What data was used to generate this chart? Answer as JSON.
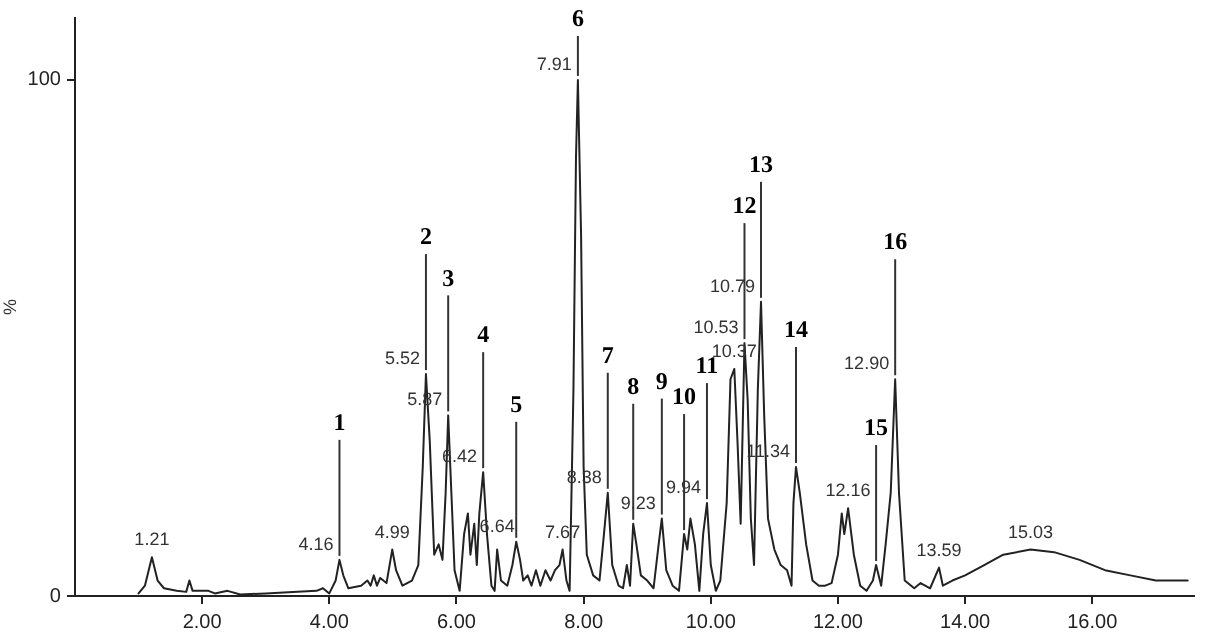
{
  "chart_data": {
    "type": "line",
    "ylabel": "%",
    "x": [
      1.0,
      1.1,
      1.21,
      1.3,
      1.4,
      1.6,
      1.75,
      1.8,
      1.85,
      2.1,
      2.2,
      2.4,
      2.6,
      3.0,
      3.5,
      3.8,
      3.9,
      4.0,
      4.1,
      4.16,
      4.22,
      4.3,
      4.5,
      4.6,
      4.65,
      4.7,
      4.75,
      4.8,
      4.9,
      4.99,
      5.05,
      5.15,
      5.3,
      5.4,
      5.47,
      5.52,
      5.58,
      5.65,
      5.72,
      5.78,
      5.83,
      5.87,
      5.92,
      5.97,
      6.05,
      6.12,
      6.18,
      6.22,
      6.28,
      6.32,
      6.36,
      6.42,
      6.48,
      6.55,
      6.6,
      6.64,
      6.7,
      6.8,
      6.88,
      6.94,
      7.0,
      7.05,
      7.12,
      7.18,
      7.25,
      7.32,
      7.4,
      7.48,
      7.55,
      7.62,
      7.67,
      7.73,
      7.78,
      7.84,
      7.88,
      7.91,
      7.96,
      8.0,
      8.05,
      8.15,
      8.25,
      8.32,
      8.38,
      8.45,
      8.55,
      8.62,
      8.68,
      8.73,
      8.78,
      8.83,
      8.9,
      9.0,
      9.1,
      9.18,
      9.23,
      9.3,
      9.4,
      9.5,
      9.58,
      9.63,
      9.68,
      9.75,
      9.82,
      9.88,
      9.94,
      10.0,
      10.08,
      10.15,
      10.25,
      10.31,
      10.37,
      10.42,
      10.47,
      10.53,
      10.58,
      10.63,
      10.68,
      10.74,
      10.79,
      10.84,
      10.9,
      11.0,
      11.1,
      11.2,
      11.27,
      11.3,
      11.34,
      11.4,
      11.5,
      11.6,
      11.7,
      11.8,
      11.9,
      12.0,
      12.06,
      12.1,
      12.16,
      12.25,
      12.35,
      12.45,
      12.55,
      12.6,
      12.68,
      12.75,
      12.83,
      12.9,
      12.96,
      13.05,
      13.2,
      13.3,
      13.45,
      13.59,
      13.65,
      13.8,
      14.0,
      14.3,
      14.6,
      15.03,
      15.4,
      15.8,
      16.2,
      16.6,
      17.0,
      17.5
    ],
    "series": [
      {
        "color": "#222222",
        "values": [
          0.5,
          2,
          7.5,
          3,
          1.5,
          1,
          0.8,
          3,
          1,
          1,
          0.5,
          1,
          0.3,
          0.5,
          0.8,
          1,
          1.5,
          0.5,
          3,
          7,
          4,
          1.5,
          2,
          3,
          2,
          4,
          2,
          3.5,
          2.5,
          9,
          5,
          2,
          3,
          6,
          25,
          43,
          30,
          8,
          10,
          7,
          20,
          35,
          20,
          5,
          1,
          12,
          16,
          8,
          14,
          6,
          16,
          24,
          12,
          2,
          1,
          9,
          3,
          2,
          6,
          10.5,
          7,
          3,
          4,
          2,
          5,
          2,
          5,
          3,
          5,
          6,
          9,
          3,
          1,
          40,
          85,
          100,
          70,
          25,
          8,
          4,
          3,
          12,
          20,
          6,
          2,
          1.5,
          6,
          2,
          14,
          10,
          4,
          3,
          1.5,
          10,
          15,
          5,
          2,
          1,
          12,
          9,
          15,
          10,
          1,
          12,
          18,
          6,
          1,
          3,
          18,
          42,
          44,
          30,
          14,
          49,
          38,
          15,
          6,
          40,
          57,
          35,
          15,
          9,
          6,
          5,
          2,
          18,
          25,
          20,
          10,
          3,
          2,
          2,
          2.5,
          8,
          16,
          12,
          17,
          8,
          2,
          1,
          3,
          6,
          2,
          10,
          20,
          42,
          20,
          3,
          1.5,
          2.5,
          1.5,
          5.5,
          2,
          3,
          4,
          6,
          8,
          9,
          8.5,
          7,
          5,
          4,
          3,
          3
        ]
      }
    ],
    "xlim": [
      0,
      17.6
    ],
    "xticks": [
      {
        "value": 2,
        "label": "2.00"
      },
      {
        "value": 4,
        "label": "4.00"
      },
      {
        "value": 6,
        "label": "6.00"
      },
      {
        "value": 8,
        "label": "8.00"
      },
      {
        "value": 10,
        "label": "10.00"
      },
      {
        "value": 12,
        "label": "12.00"
      },
      {
        "value": 14,
        "label": "14.00"
      },
      {
        "value": 16,
        "label": "16.00"
      }
    ],
    "ylim": [
      0,
      112
    ],
    "yticks": [
      0,
      100
    ],
    "grid": false,
    "legend": false,
    "marker": "none",
    "line_style": "solid",
    "annotations": [
      {
        "text": "1.21",
        "x": 1.21,
        "y": 7.5
      },
      {
        "text": "4.16",
        "x": 4.16,
        "y": 7
      },
      {
        "text": "4.99",
        "x": 4.99,
        "y": 9
      },
      {
        "text": "5.52",
        "x": 5.52,
        "y": 43
      },
      {
        "text": "5.87",
        "x": 5.87,
        "y": 35
      },
      {
        "text": "6.42",
        "x": 6.42,
        "y": 24
      },
      {
        "text": "6.64",
        "x": 6.64,
        "y": 10
      },
      {
        "text": "7.67",
        "x": 7.67,
        "y": 9
      },
      {
        "text": "7.91",
        "x": 7.91,
        "y": 100
      },
      {
        "text": "8.38",
        "x": 8.38,
        "y": 20
      },
      {
        "text": "9.23",
        "x": 9.23,
        "y": 15
      },
      {
        "text": "9.94",
        "x": 9.94,
        "y": 18
      },
      {
        "text": "10.37",
        "x": 10.37,
        "y": 44
      },
      {
        "text": "10.53",
        "x": 10.53,
        "y": 49
      },
      {
        "text": "10.79",
        "x": 10.79,
        "y": 57
      },
      {
        "text": "11.34",
        "x": 11.34,
        "y": 25
      },
      {
        "text": "12.16",
        "x": 12.16,
        "y": 17
      },
      {
        "text": "12.90",
        "x": 12.9,
        "y": 42
      },
      {
        "text": "13.59",
        "x": 13.59,
        "y": 5.5
      },
      {
        "text": "15.03",
        "x": 15.03,
        "y": 9
      },
      {
        "text": "1",
        "x": 4.16,
        "y": 7
      },
      {
        "text": "2",
        "x": 5.52,
        "y": 43
      },
      {
        "text": "3",
        "x": 5.87,
        "y": 35
      },
      {
        "text": "4",
        "x": 6.42,
        "y": 24
      },
      {
        "text": "5",
        "x": 6.94,
        "y": 10.5
      },
      {
        "text": "6",
        "x": 7.91,
        "y": 100
      },
      {
        "text": "7",
        "x": 8.38,
        "y": 20
      },
      {
        "text": "8",
        "x": 8.78,
        "y": 14
      },
      {
        "text": "9",
        "x": 9.23,
        "y": 15
      },
      {
        "text": "10",
        "x": 9.58,
        "y": 12
      },
      {
        "text": "11",
        "x": 9.94,
        "y": 18
      },
      {
        "text": "12",
        "x": 10.53,
        "y": 49
      },
      {
        "text": "13",
        "x": 10.79,
        "y": 57
      },
      {
        "text": "14",
        "x": 11.34,
        "y": 25
      },
      {
        "text": "15",
        "x": 12.6,
        "y": 6
      },
      {
        "text": "16",
        "x": 12.9,
        "y": 42
      }
    ]
  }
}
